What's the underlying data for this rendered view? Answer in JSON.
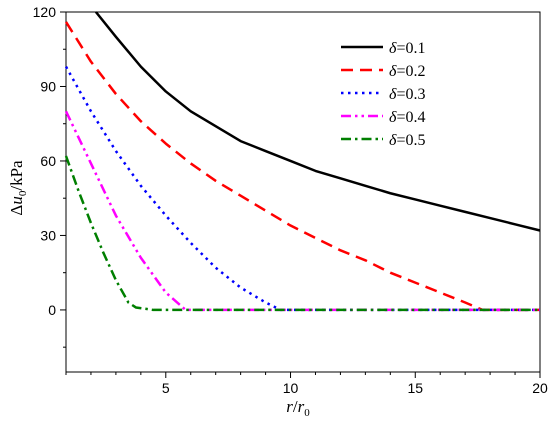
{
  "chart_data": {
    "type": "line",
    "xlabel": {
      "main": "r",
      "slash": "/",
      "sub_base": "r",
      "sub": "0"
    },
    "ylabel": {
      "prefix": "Δ",
      "main": "u",
      "sub": "0",
      "suffix": "/kPa"
    },
    "xlim": [
      1,
      20
    ],
    "ylim": [
      -25,
      120
    ],
    "xticks": [
      5,
      10,
      15,
      20
    ],
    "yticks": [
      0,
      30,
      60,
      90,
      120
    ],
    "grid": false,
    "legend_position": "top-right",
    "legend_symbol": "δ",
    "series": [
      {
        "name": "=0.1",
        "color": "#000000",
        "dash": "solid",
        "x": [
          2.2,
          3,
          4,
          5,
          6,
          7,
          8,
          9,
          10,
          11,
          12,
          13,
          14,
          15,
          16,
          17,
          18,
          19,
          20
        ],
        "y": [
          120,
          110,
          98,
          88,
          80,
          74,
          68,
          64,
          60,
          56,
          53,
          50,
          47,
          44.5,
          42,
          39.5,
          37,
          34.5,
          32
        ]
      },
      {
        "name": "=0.2",
        "color": "#ff0000",
        "dash": "dashed",
        "x": [
          1,
          2,
          3,
          4,
          5,
          6,
          7,
          8,
          9,
          10,
          11,
          12,
          13,
          14,
          15,
          16,
          17,
          17.7,
          18,
          19,
          20
        ],
        "y": [
          116,
          100,
          87,
          76,
          67,
          59,
          52,
          46,
          40,
          34,
          29,
          24,
          20,
          15,
          11,
          7,
          3,
          0,
          0,
          0,
          0
        ]
      },
      {
        "name": "=0.3",
        "color": "#0000ff",
        "dash": "dotted",
        "x": [
          1,
          2,
          3,
          4,
          5,
          6,
          7,
          8,
          9,
          9.6,
          10,
          12,
          14,
          16,
          18,
          20
        ],
        "y": [
          98,
          80,
          64,
          50,
          38,
          27,
          17,
          9,
          3,
          0,
          0,
          0,
          0,
          0,
          0,
          0
        ]
      },
      {
        "name": "=0.4",
        "color": "#ff00ff",
        "dash": "dashdotdot",
        "x": [
          1,
          2,
          3,
          4,
          5,
          5.8,
          6,
          8,
          10,
          12,
          14,
          16,
          18,
          20
        ],
        "y": [
          80,
          59,
          38,
          21,
          7,
          0,
          0,
          0,
          0,
          0,
          0,
          0,
          0,
          0
        ]
      },
      {
        "name": "=0.5",
        "color": "#007f00",
        "dash": "dashdot",
        "x": [
          1,
          1.5,
          2,
          2.5,
          3,
          3.5,
          3.8,
          4.5,
          6,
          8,
          10,
          12,
          14,
          16,
          18,
          20
        ],
        "y": [
          62,
          48,
          35,
          23,
          12,
          3,
          1,
          0,
          0,
          0,
          0,
          0,
          0,
          0,
          0,
          0
        ]
      }
    ]
  }
}
